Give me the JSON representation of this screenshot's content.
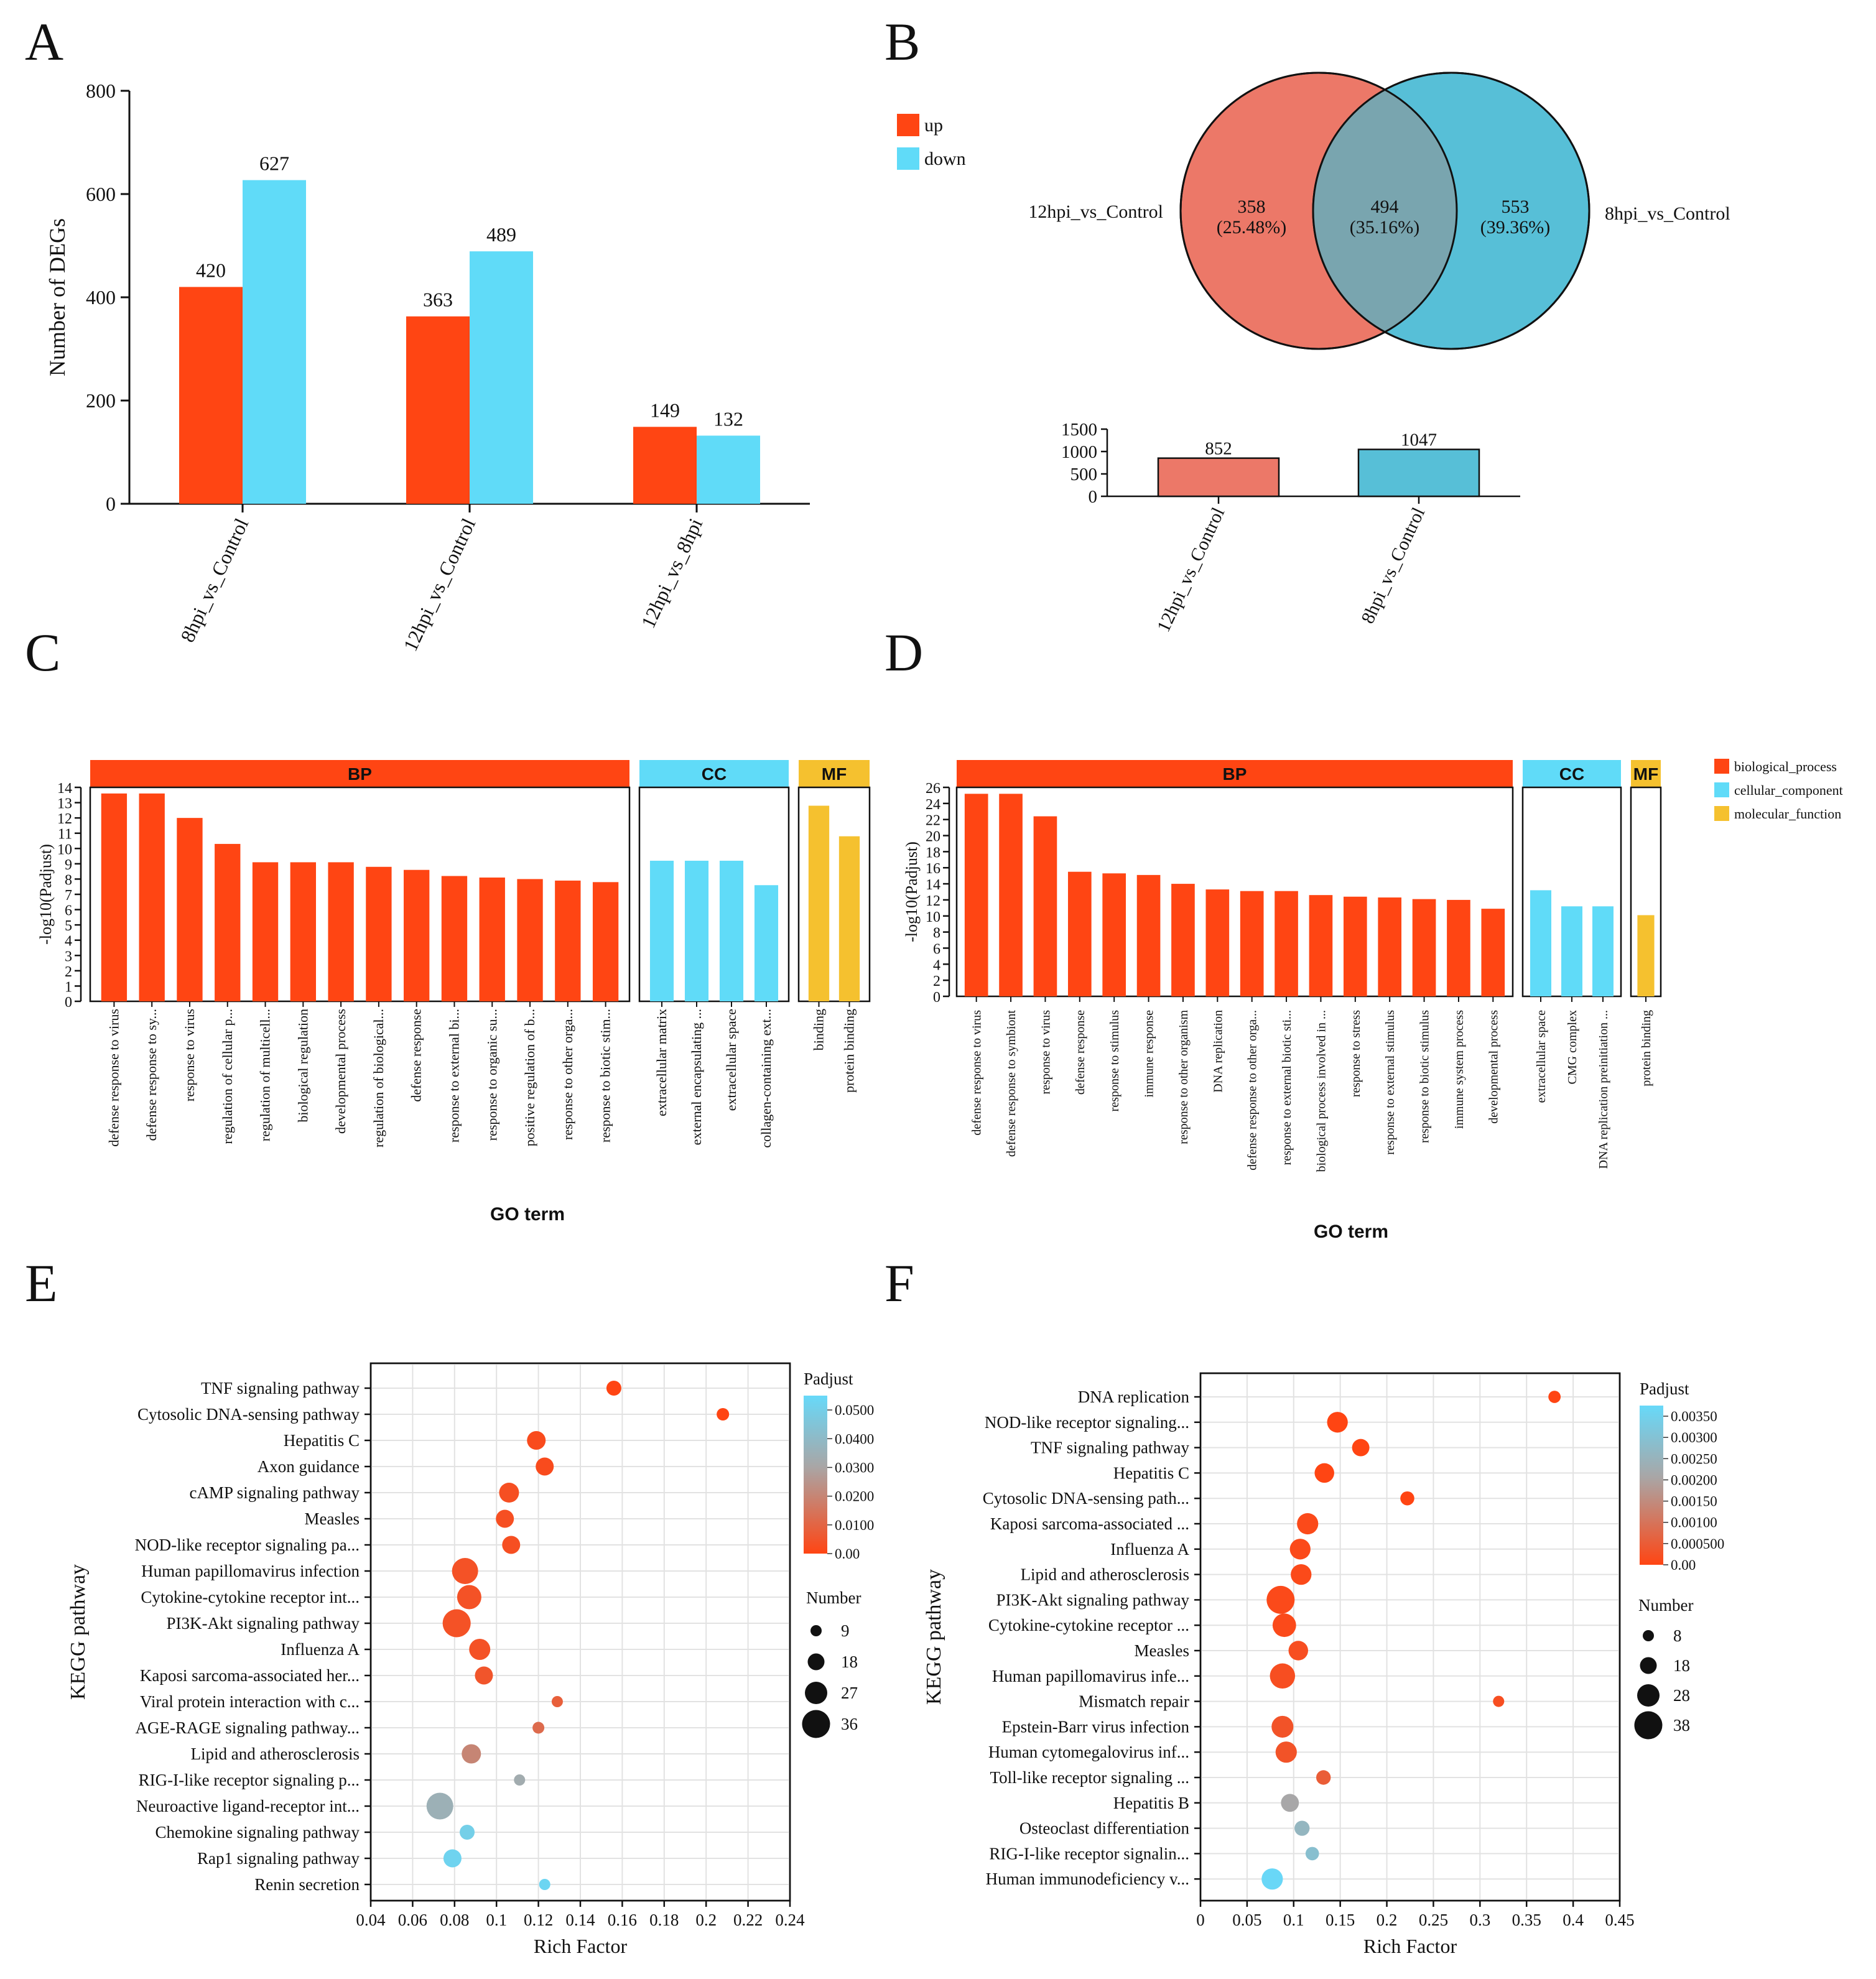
{
  "panel_letters": [
    "A",
    "B",
    "C",
    "D",
    "E",
    "F"
  ],
  "colors": {
    "up": "#FF4513",
    "down": "#60DBF8",
    "bp": "#FF4513",
    "cc": "#60DBF8",
    "mf": "#F5C12F",
    "venn_left": "#EC7868",
    "venn_right": "#57BFD7",
    "venn_overlap": "#79A5AF",
    "padj_low": "#FF4513",
    "padj_mid": "#A9A6A6",
    "padj_high": "#67D9F9"
  },
  "chart_data": [
    {
      "panel": "A",
      "type": "bar",
      "categories": [
        "8hpi_vs_Control",
        "12hpi_vs_Control",
        "12hpi_vs_8hpi"
      ],
      "series": [
        {
          "name": "up",
          "values": [
            420,
            363,
            149
          ]
        },
        {
          "name": "down",
          "values": [
            627,
            489,
            132
          ]
        }
      ],
      "ylabel": "Number of DEGs",
      "ylim": [
        0,
        800
      ],
      "yticks": [
        0,
        200,
        400,
        600,
        800
      ],
      "legend": [
        "up",
        "down"
      ]
    },
    {
      "panel": "B",
      "type": "venn",
      "sets": [
        {
          "name": "12hpi_vs_Control",
          "unique": 358,
          "unique_pct": "(25.48%)",
          "total": 852
        },
        {
          "name": "8hpi_vs_Control",
          "unique": 553,
          "unique_pct": "(39.36%)",
          "total": 1047
        }
      ],
      "overlap": {
        "value": 494,
        "pct": "(35.16%)"
      },
      "bar_ylim": [
        0,
        1500
      ],
      "bar_yticks": [
        0,
        500,
        1000,
        1500
      ]
    },
    {
      "panel": "C",
      "type": "bar",
      "ylabel": "-log10(Padjust)",
      "xlabel": "GO term",
      "ylim": [
        0,
        14
      ],
      "yticks": [
        0,
        1,
        2,
        3,
        4,
        5,
        6,
        7,
        8,
        9,
        10,
        11,
        12,
        13,
        14
      ],
      "groups": [
        {
          "name": "BP",
          "terms": [
            "defense response to virus",
            "defense response to sy...",
            "response to virus",
            "regulation of cellular p...",
            "regulation of multicell...",
            "biological regulation",
            "developmental process",
            "regulation of biological...",
            "defense response",
            "response to external bi...",
            "response to organic su...",
            "positive regulation of b...",
            "response to other orga...",
            "response to biotic stim..."
          ],
          "values": [
            13.6,
            13.6,
            12.0,
            10.3,
            9.1,
            9.1,
            9.1,
            8.8,
            8.6,
            8.2,
            8.1,
            8.0,
            7.9,
            7.8
          ]
        },
        {
          "name": "CC",
          "terms": [
            "extracellular matrix",
            "external encapsulating ...",
            "extracellular space",
            "collagen-containing ext..."
          ],
          "values": [
            9.2,
            9.2,
            9.2,
            7.6
          ]
        },
        {
          "name": "MF",
          "terms": [
            "binding",
            "protein binding"
          ],
          "values": [
            12.8,
            10.8
          ]
        }
      ]
    },
    {
      "panel": "D",
      "type": "bar",
      "ylabel": "-log10(Padjust)",
      "xlabel": "GO term",
      "ylim": [
        0,
        26
      ],
      "yticks": [
        0,
        2,
        4,
        6,
        8,
        10,
        12,
        14,
        16,
        18,
        20,
        22,
        24,
        26
      ],
      "groups": [
        {
          "name": "BP",
          "terms": [
            "defense response to virus",
            "defense response to symbiont",
            "response to virus",
            "defense response",
            "response to stimulus",
            "immune response",
            "response to other organism",
            "DNA replication",
            "defense response to other orga...",
            "response to external biotic sti...",
            "biological process involved in ...",
            "response to stress",
            "response to external stimulus",
            "response to biotic stimulus",
            "immune system process",
            "developmental process"
          ],
          "values": [
            25.2,
            25.2,
            22.4,
            15.5,
            15.3,
            15.1,
            14.0,
            13.3,
            13.1,
            13.1,
            12.6,
            12.4,
            12.3,
            12.1,
            12.0,
            10.9
          ]
        },
        {
          "name": "CC",
          "terms": [
            "extracellular space",
            "CMG complex",
            "DNA replication preinitiation ..."
          ],
          "values": [
            13.2,
            11.2,
            11.2
          ]
        },
        {
          "name": "MF",
          "terms": [
            "protein binding"
          ],
          "values": [
            10.1
          ]
        }
      ],
      "legend": [
        "biological_process",
        "cellular_component",
        "molecular_function"
      ]
    },
    {
      "panel": "E",
      "type": "scatter",
      "xlabel": "Rich Factor",
      "ylabel": "KEGG pathway",
      "xlim": [
        0.04,
        0.24
      ],
      "xticks": [
        0.04,
        0.06,
        0.08,
        0.1,
        0.12,
        0.14,
        0.16,
        0.18,
        0.2,
        0.22,
        0.24
      ],
      "color_legend_title": "Padjust",
      "color_range": [
        0,
        0.055
      ],
      "color_ticks": [
        "0.00",
        "0.0100",
        "0.0200",
        "0.0300",
        "0.0400",
        "0.0500"
      ],
      "size_legend_title": "Number",
      "size_legend": [
        9,
        18,
        27,
        36
      ],
      "size_range": [
        4,
        40
      ],
      "points": [
        {
          "pathway": "TNF signaling pathway",
          "x": 0.156,
          "number": 15,
          "padj": 0.0
        },
        {
          "pathway": "Cytosolic DNA-sensing pathway",
          "x": 0.208,
          "number": 11,
          "padj": 0.0
        },
        {
          "pathway": "Hepatitis C",
          "x": 0.119,
          "number": 21,
          "padj": 0.002
        },
        {
          "pathway": "Axon guidance",
          "x": 0.123,
          "number": 20,
          "padj": 0.002
        },
        {
          "pathway": "cAMP signaling pathway",
          "x": 0.106,
          "number": 23,
          "padj": 0.003
        },
        {
          "pathway": "Measles",
          "x": 0.104,
          "number": 20,
          "padj": 0.003
        },
        {
          "pathway": "NOD-like receptor signaling pa...",
          "x": 0.107,
          "number": 20,
          "padj": 0.003
        },
        {
          "pathway": "Human papillomavirus infection",
          "x": 0.085,
          "number": 33,
          "padj": 0.004
        },
        {
          "pathway": "Cytokine-cytokine receptor int...",
          "x": 0.087,
          "number": 30,
          "padj": 0.004
        },
        {
          "pathway": "PI3K-Akt signaling pathway",
          "x": 0.081,
          "number": 36,
          "padj": 0.004
        },
        {
          "pathway": "Influenza A",
          "x": 0.092,
          "number": 25,
          "padj": 0.004
        },
        {
          "pathway": "Kaposi sarcoma-associated her...",
          "x": 0.094,
          "number": 20,
          "padj": 0.005
        },
        {
          "pathway": "Viral protein interaction with c...",
          "x": 0.129,
          "number": 9,
          "padj": 0.008
        },
        {
          "pathway": "AGE-RAGE signaling pathway...",
          "x": 0.12,
          "number": 10,
          "padj": 0.012
        },
        {
          "pathway": "Lipid and atherosclerosis",
          "x": 0.088,
          "number": 22,
          "padj": 0.02
        },
        {
          "pathway": "RIG-I-like receptor signaling p...",
          "x": 0.111,
          "number": 8,
          "padj": 0.033
        },
        {
          "pathway": "Neuroactive ligand-receptor int...",
          "x": 0.073,
          "number": 34,
          "padj": 0.035
        },
        {
          "pathway": "Chemokine signaling pathway",
          "x": 0.086,
          "number": 15,
          "padj": 0.05
        },
        {
          "pathway": "Rap1 signaling pathway",
          "x": 0.079,
          "number": 20,
          "padj": 0.052
        },
        {
          "pathway": "Renin secretion",
          "x": 0.123,
          "number": 5,
          "padj": 0.053
        }
      ]
    },
    {
      "panel": "F",
      "type": "scatter",
      "xlabel": "Rich Factor",
      "ylabel": "KEGG pathway",
      "xlim": [
        0,
        0.45
      ],
      "xticks": [
        0,
        0.05,
        0.1,
        0.15,
        0.2,
        0.25,
        0.3,
        0.35,
        0.4,
        0.45
      ],
      "color_legend_title": "Padjust",
      "color_range": [
        0,
        0.00375
      ],
      "color_ticks": [
        "0.00",
        "0.000500",
        "0.00100",
        "0.00150",
        "0.00200",
        "0.00250",
        "0.00300",
        "0.00350"
      ],
      "size_legend_title": "Number",
      "size_legend": [
        8,
        18,
        28,
        38
      ],
      "size_range": [
        3,
        40
      ],
      "points": [
        {
          "pathway": "DNA replication",
          "x": 0.38,
          "number": 10,
          "padj": 0.0
        },
        {
          "pathway": "NOD-like receptor signaling...",
          "x": 0.147,
          "number": 25,
          "padj": 0.0
        },
        {
          "pathway": "TNF signaling pathway",
          "x": 0.172,
          "number": 19,
          "padj": 0.0
        },
        {
          "pathway": "Hepatitis C",
          "x": 0.133,
          "number": 23,
          "padj": 0.0
        },
        {
          "pathway": "Cytosolic DNA-sensing path...",
          "x": 0.222,
          "number": 13,
          "padj": 0.0
        },
        {
          "pathway": "Kaposi sarcoma-associated ...",
          "x": 0.115,
          "number": 26,
          "padj": 0.0001
        },
        {
          "pathway": "Influenza A",
          "x": 0.107,
          "number": 25,
          "padj": 0.0001
        },
        {
          "pathway": "Lipid and atherosclerosis",
          "x": 0.108,
          "number": 25,
          "padj": 0.0001
        },
        {
          "pathway": "PI3K-Akt signaling pathway",
          "x": 0.086,
          "number": 38,
          "padj": 0.0001
        },
        {
          "pathway": "Cytokine-cytokine receptor ...",
          "x": 0.09,
          "number": 30,
          "padj": 0.0001
        },
        {
          "pathway": "Measles",
          "x": 0.105,
          "number": 23,
          "padj": 0.0002
        },
        {
          "pathway": "Human papillomavirus infe...",
          "x": 0.088,
          "number": 33,
          "padj": 0.0002
        },
        {
          "pathway": "Mismatch repair",
          "x": 0.32,
          "number": 6,
          "padj": 0.0002
        },
        {
          "pathway": "Epstein-Barr virus infection",
          "x": 0.088,
          "number": 27,
          "padj": 0.0003
        },
        {
          "pathway": "Human cytomegalovirus inf...",
          "x": 0.092,
          "number": 26,
          "padj": 0.0003
        },
        {
          "pathway": "Toll-like receptor signaling ...",
          "x": 0.132,
          "number": 14,
          "padj": 0.0005
        },
        {
          "pathway": "Hepatitis B",
          "x": 0.096,
          "number": 20,
          "padj": 0.0021
        },
        {
          "pathway": "Osteoclast differentiation",
          "x": 0.109,
          "number": 15,
          "padj": 0.0026
        },
        {
          "pathway": "RIG-I-like receptor signalin...",
          "x": 0.12,
          "number": 12,
          "padj": 0.0029
        },
        {
          "pathway": "Human immunodeficiency v...",
          "x": 0.077,
          "number": 26,
          "padj": 0.0037
        }
      ]
    }
  ]
}
